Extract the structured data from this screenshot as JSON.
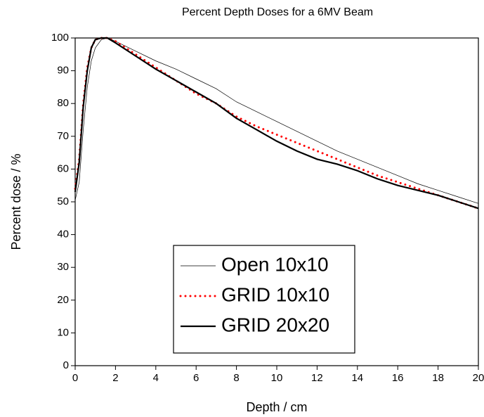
{
  "chart_data": {
    "type": "line",
    "title": "Percent Depth Doses for a 6MV Beam",
    "x_label": "Depth / cm",
    "y_label": "Percent dose / %",
    "x": [
      0,
      0.2,
      0.4,
      0.6,
      0.8,
      1.0,
      1.3,
      1.6,
      2,
      3,
      4,
      5,
      6,
      7,
      8,
      9,
      10,
      11,
      12,
      13,
      14,
      15,
      16,
      17,
      18,
      19,
      20
    ],
    "series": [
      {
        "name": "Open 10x10",
        "color": "#000000",
        "line_width": 0.7,
        "dotted": false,
        "values": [
          50.5,
          56,
          72,
          85,
          93,
          97,
          99.5,
          100,
          99,
          96,
          93,
          90.5,
          87.5,
          84.5,
          80.5,
          77.5,
          74.5,
          71.5,
          68.5,
          65.5,
          63,
          60.5,
          58,
          55.5,
          53.5,
          51.5,
          49.5
        ]
      },
      {
        "name": "GRID 10x10",
        "color": "#ff0000",
        "line_width": 3,
        "dotted": true,
        "values": [
          54,
          63,
          80,
          91,
          97,
          99.5,
          100,
          100,
          99,
          95,
          91,
          87,
          83,
          80,
          76,
          73,
          70.5,
          68,
          65.5,
          63,
          60.5,
          58,
          56,
          54,
          52,
          50,
          48
        ]
      },
      {
        "name": "GRID 20x20",
        "color": "#000000",
        "line_width": 2.2,
        "dotted": false,
        "values": [
          53,
          62,
          79,
          90,
          97,
          99.5,
          100,
          100,
          98.5,
          94.5,
          90.5,
          87,
          83.5,
          80,
          75.5,
          72,
          68.5,
          65.5,
          63,
          61.5,
          59.5,
          57,
          55,
          53.5,
          52,
          50,
          48
        ]
      }
    ],
    "xlim": [
      0,
      20
    ],
    "xticks": [
      0,
      2,
      4,
      6,
      8,
      10,
      12,
      14,
      16,
      18,
      20
    ],
    "ylim": [
      0,
      100
    ],
    "yticks": [
      0,
      10,
      20,
      30,
      40,
      50,
      60,
      70,
      80,
      90,
      100
    ],
    "grid": false,
    "legend_position": "bottom"
  }
}
